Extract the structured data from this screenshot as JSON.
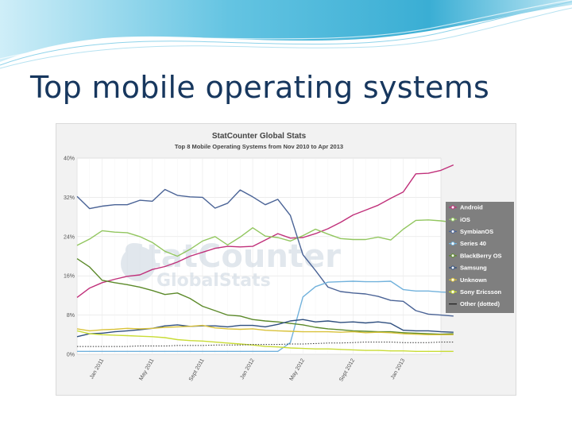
{
  "slide": {
    "title": "Top mobile operating systems"
  },
  "colors": {
    "title": "#17375e",
    "banner": "#4bb6d8"
  },
  "watermark": {
    "line1": "StatCounter",
    "line2": "GlobalStats"
  },
  "chart_data": {
    "type": "line",
    "title": "StatCounter Global Stats",
    "subtitle": "Top 8 Mobile Operating Systems from Nov 2010 to Apr 2013",
    "y_ticks": [
      "40%",
      "32%",
      "24%",
      "16%",
      "8%",
      "0%"
    ],
    "ylim": [
      0,
      40
    ],
    "x_ticks": [
      "Jan 2011",
      "May 2011",
      "Sept 2011",
      "Jan 2012",
      "May 2012",
      "Sept 2012",
      "Jan 2013"
    ],
    "x_start": "2010-11",
    "x_end": "2013-04",
    "grid": true,
    "legend_position": "right",
    "series": [
      {
        "name": "Android",
        "color": "#c0307a",
        "values": [
          [
            0,
            11.6
          ],
          [
            1,
            13.5
          ],
          [
            2,
            14.6
          ],
          [
            3,
            15.3
          ],
          [
            4,
            15.9
          ],
          [
            5,
            16.2
          ],
          [
            6,
            17.3
          ],
          [
            7,
            17.9
          ],
          [
            8,
            18.8
          ],
          [
            9,
            20
          ],
          [
            10,
            20.8
          ],
          [
            11,
            21.6
          ],
          [
            12,
            22
          ],
          [
            13,
            21.9
          ],
          [
            14,
            22
          ],
          [
            15,
            23.3
          ],
          [
            16,
            24.6
          ],
          [
            17,
            23.7
          ],
          [
            18,
            23.8
          ],
          [
            19,
            24.6
          ],
          [
            20,
            25.6
          ],
          [
            21,
            26.9
          ],
          [
            22,
            28.4
          ],
          [
            23,
            29.4
          ],
          [
            24,
            30.4
          ],
          [
            25,
            31.8
          ],
          [
            26,
            33.1
          ],
          [
            27,
            36.8
          ],
          [
            28,
            36.9
          ],
          [
            29,
            37.5
          ],
          [
            30,
            38.6
          ]
        ]
      },
      {
        "name": "iOS",
        "color": "#92c65f",
        "values": [
          [
            0,
            22.2
          ],
          [
            1,
            23.5
          ],
          [
            2,
            25.2
          ],
          [
            3,
            24.9
          ],
          [
            4,
            24.8
          ],
          [
            5,
            24
          ],
          [
            6,
            22.8
          ],
          [
            7,
            21
          ],
          [
            8,
            20
          ],
          [
            9,
            21.4
          ],
          [
            10,
            23.1
          ],
          [
            11,
            24
          ],
          [
            12,
            22.3
          ],
          [
            13,
            23.9
          ],
          [
            14,
            25.8
          ],
          [
            15,
            24.1
          ],
          [
            16,
            23.8
          ],
          [
            17,
            23.1
          ],
          [
            18,
            24.2
          ],
          [
            19,
            25.5
          ],
          [
            20,
            24.5
          ],
          [
            21,
            23.6
          ],
          [
            22,
            23.4
          ],
          [
            23,
            23.4
          ],
          [
            24,
            23.9
          ],
          [
            25,
            23.3
          ],
          [
            26,
            25.5
          ],
          [
            27,
            27.3
          ],
          [
            28,
            27.4
          ],
          [
            29,
            27.2
          ],
          [
            30,
            26.9
          ]
        ]
      },
      {
        "name": "SymbianOS",
        "color": "#4a6396",
        "values": [
          [
            0,
            32.2
          ],
          [
            1,
            29.7
          ],
          [
            2,
            30.2
          ],
          [
            3,
            30.5
          ],
          [
            4,
            30.5
          ],
          [
            5,
            31.4
          ],
          [
            6,
            31.2
          ],
          [
            7,
            33.6
          ],
          [
            8,
            32.4
          ],
          [
            9,
            32.1
          ],
          [
            10,
            32
          ],
          [
            11,
            29.8
          ],
          [
            12,
            30.8
          ],
          [
            13,
            33.5
          ],
          [
            14,
            32.1
          ],
          [
            15,
            30.5
          ],
          [
            16,
            31.6
          ],
          [
            17,
            28.3
          ],
          [
            18,
            20.3
          ],
          [
            19,
            17.1
          ],
          [
            20,
            13.7
          ],
          [
            21,
            12.8
          ],
          [
            22,
            12.5
          ],
          [
            23,
            12.3
          ],
          [
            24,
            11.8
          ],
          [
            25,
            11
          ],
          [
            26,
            10.8
          ],
          [
            27,
            8.9
          ],
          [
            28,
            8.2
          ],
          [
            29,
            8
          ],
          [
            30,
            7.8
          ]
        ]
      },
      {
        "name": "Series 40",
        "color": "#72b2dc",
        "values": [
          [
            0,
            0.6
          ],
          [
            1,
            0.6
          ],
          [
            2,
            0.6
          ],
          [
            3,
            0.6
          ],
          [
            4,
            0.6
          ],
          [
            5,
            0.6
          ],
          [
            6,
            0.6
          ],
          [
            7,
            0.6
          ],
          [
            8,
            0.6
          ],
          [
            9,
            0.6
          ],
          [
            10,
            0.6
          ],
          [
            11,
            0.6
          ],
          [
            12,
            0.6
          ],
          [
            13,
            0.6
          ],
          [
            14,
            0.6
          ],
          [
            15,
            0.6
          ],
          [
            16,
            0.6
          ],
          [
            17,
            2.4
          ],
          [
            18,
            11.7
          ],
          [
            19,
            13.8
          ],
          [
            20,
            14.7
          ],
          [
            21,
            14.8
          ],
          [
            22,
            14.9
          ],
          [
            23,
            14.8
          ],
          [
            24,
            14.8
          ],
          [
            25,
            14.9
          ],
          [
            26,
            13.2
          ],
          [
            27,
            12.9
          ],
          [
            28,
            12.9
          ],
          [
            29,
            12.7
          ],
          [
            30,
            12.6
          ]
        ]
      },
      {
        "name": "BlackBerry OS",
        "color": "#5c8a2a",
        "values": [
          [
            0,
            19.5
          ],
          [
            1,
            17.8
          ],
          [
            2,
            15.1
          ],
          [
            3,
            14.6
          ],
          [
            4,
            14.2
          ],
          [
            5,
            13.7
          ],
          [
            6,
            13
          ],
          [
            7,
            12.2
          ],
          [
            8,
            12.5
          ],
          [
            9,
            11.4
          ],
          [
            10,
            9.8
          ],
          [
            11,
            8.9
          ],
          [
            12,
            8
          ],
          [
            13,
            7.8
          ],
          [
            14,
            7.1
          ],
          [
            15,
            6.8
          ],
          [
            16,
            6.6
          ],
          [
            17,
            6.3
          ],
          [
            18,
            6
          ],
          [
            19,
            5.5
          ],
          [
            20,
            5.2
          ],
          [
            21,
            5
          ],
          [
            22,
            4.8
          ],
          [
            23,
            4.7
          ],
          [
            24,
            4.6
          ],
          [
            25,
            4.6
          ],
          [
            26,
            4.4
          ],
          [
            27,
            4.3
          ],
          [
            28,
            4.2
          ],
          [
            29,
            4.1
          ],
          [
            30,
            4.2
          ]
        ]
      },
      {
        "name": "Samsung",
        "color": "#2f4f7f",
        "values": [
          [
            0,
            3.6
          ],
          [
            1,
            4.2
          ],
          [
            2,
            4.3
          ],
          [
            3,
            4.6
          ],
          [
            4,
            4.8
          ],
          [
            5,
            5
          ],
          [
            6,
            5.3
          ],
          [
            7,
            5.8
          ],
          [
            8,
            6
          ],
          [
            9,
            5.7
          ],
          [
            10,
            5.8
          ],
          [
            11,
            5.8
          ],
          [
            12,
            5.6
          ],
          [
            13,
            5.9
          ],
          [
            14,
            5.9
          ],
          [
            15,
            5.6
          ],
          [
            16,
            6.1
          ],
          [
            17,
            6.8
          ],
          [
            18,
            7.1
          ],
          [
            19,
            6.6
          ],
          [
            20,
            6.8
          ],
          [
            21,
            6.5
          ],
          [
            22,
            6.6
          ],
          [
            23,
            6.4
          ],
          [
            24,
            6.6
          ],
          [
            25,
            6.3
          ],
          [
            26,
            4.9
          ],
          [
            27,
            4.8
          ],
          [
            28,
            4.8
          ],
          [
            29,
            4.6
          ],
          [
            30,
            4.5
          ]
        ]
      },
      {
        "name": "Unknown",
        "color": "#d9c23a",
        "values": [
          [
            0,
            5.2
          ],
          [
            1,
            4.8
          ],
          [
            2,
            5
          ],
          [
            3,
            5.1
          ],
          [
            4,
            5.3
          ],
          [
            5,
            5.2
          ],
          [
            6,
            5.3
          ],
          [
            7,
            5.5
          ],
          [
            8,
            5.6
          ],
          [
            9,
            5.7
          ],
          [
            10,
            5.9
          ],
          [
            11,
            5.4
          ],
          [
            12,
            5.2
          ],
          [
            13,
            5.1
          ],
          [
            14,
            5.2
          ],
          [
            15,
            4.9
          ],
          [
            16,
            4.8
          ],
          [
            17,
            4.7
          ],
          [
            18,
            4.6
          ],
          [
            19,
            4.6
          ],
          [
            20,
            4.6
          ],
          [
            21,
            4.5
          ],
          [
            22,
            4.6
          ],
          [
            23,
            4.4
          ],
          [
            24,
            4.5
          ],
          [
            25,
            4.4
          ],
          [
            26,
            4.2
          ],
          [
            27,
            4.1
          ],
          [
            28,
            4
          ],
          [
            29,
            4
          ],
          [
            30,
            4
          ]
        ]
      },
      {
        "name": "Sony Ericsson",
        "color": "#c9dc36",
        "values": [
          [
            0,
            4.8
          ],
          [
            1,
            4.2
          ],
          [
            2,
            4
          ],
          [
            3,
            3.9
          ],
          [
            4,
            3.8
          ],
          [
            5,
            3.7
          ],
          [
            6,
            3.6
          ],
          [
            7,
            3.4
          ],
          [
            8,
            3
          ],
          [
            9,
            2.8
          ],
          [
            10,
            2.7
          ],
          [
            11,
            2.5
          ],
          [
            12,
            2.3
          ],
          [
            13,
            2.1
          ],
          [
            14,
            1.9
          ],
          [
            15,
            1.6
          ],
          [
            16,
            1.5
          ],
          [
            17,
            1.3
          ],
          [
            18,
            1.2
          ],
          [
            19,
            1.1
          ],
          [
            20,
            1.1
          ],
          [
            21,
            1
          ],
          [
            22,
            0.9
          ],
          [
            23,
            0.8
          ],
          [
            24,
            0.8
          ],
          [
            25,
            0.7
          ],
          [
            26,
            0.7
          ],
          [
            27,
            0.6
          ],
          [
            28,
            0.6
          ],
          [
            29,
            0.6
          ],
          [
            30,
            0.6
          ]
        ]
      },
      {
        "name": "Other (dotted)",
        "color": "#333333",
        "dotted": true,
        "values": [
          [
            0,
            1.6
          ],
          [
            1,
            1.6
          ],
          [
            2,
            1.6
          ],
          [
            3,
            1.6
          ],
          [
            4,
            1.6
          ],
          [
            5,
            1.7
          ],
          [
            6,
            1.7
          ],
          [
            7,
            1.7
          ],
          [
            8,
            1.8
          ],
          [
            9,
            1.8
          ],
          [
            10,
            1.8
          ],
          [
            11,
            1.9
          ],
          [
            12,
            1.9
          ],
          [
            13,
            1.9
          ],
          [
            14,
            2
          ],
          [
            15,
            2
          ],
          [
            16,
            2
          ],
          [
            17,
            2.1
          ],
          [
            18,
            2.1
          ],
          [
            19,
            2.2
          ],
          [
            20,
            2.3
          ],
          [
            21,
            2.3
          ],
          [
            22,
            2.4
          ],
          [
            23,
            2.5
          ],
          [
            24,
            2.5
          ],
          [
            25,
            2.5
          ],
          [
            26,
            2.4
          ],
          [
            27,
            2.4
          ],
          [
            28,
            2.4
          ],
          [
            29,
            2.5
          ],
          [
            30,
            2.5
          ]
        ]
      }
    ]
  }
}
